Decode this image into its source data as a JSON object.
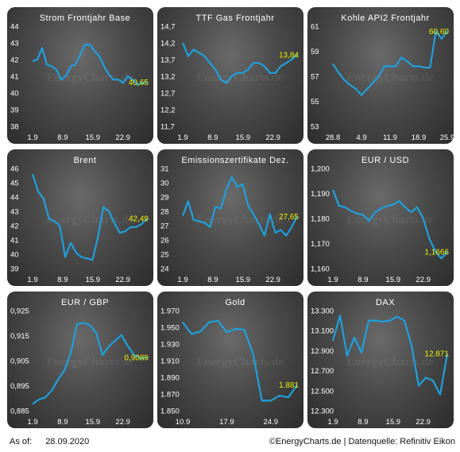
{
  "footer": {
    "as_of_label": "As of:",
    "as_of_date": "28.09.2020",
    "source": "©EnergyCharts.de | Datenquelle: Refinitiv Eikon"
  },
  "watermark": "EnergyCharts.de",
  "line_color": "#1ea0dc",
  "label_color": "#f0f000",
  "chart_data": [
    {
      "type": "line",
      "title": "Strom Frontjahr Base",
      "ylim": [
        38,
        44
      ],
      "yticks": [
        "38",
        "39",
        "40",
        "41",
        "42",
        "43",
        "44"
      ],
      "xticks": [
        {
          "label": "1.9",
          "x": 0
        },
        {
          "label": "8.9",
          "x": 5
        },
        {
          "label": "15.9",
          "x": 10
        },
        {
          "label": "22.9",
          "x": 15
        }
      ],
      "xmax": 19,
      "last_label": "40,65",
      "values": [
        41.9,
        42.0,
        42.7,
        41.7,
        41.6,
        41.4,
        40.8,
        41.0,
        41.6,
        41.7,
        42.3,
        42.9,
        42.9,
        42.5,
        42.2,
        41.6,
        41.1,
        40.8,
        40.8,
        40.6,
        41.0,
        40.8,
        40.5,
        40.6,
        40.65
      ]
    },
    {
      "type": "line",
      "title": "TTF Gas Frontjahr",
      "ylim": [
        11.7,
        14.7
      ],
      "yticks": [
        "11,7",
        "12,2",
        "12,7",
        "13,2",
        "13,7",
        "14,2",
        "14,7"
      ],
      "xticks": [
        {
          "label": "1.9",
          "x": 0
        },
        {
          "label": "8.9",
          "x": 5
        },
        {
          "label": "15.9",
          "x": 10
        },
        {
          "label": "22.9",
          "x": 15
        }
      ],
      "xmax": 19,
      "last_label": "13,84",
      "values": [
        14.2,
        13.8,
        14.0,
        13.9,
        13.8,
        13.6,
        13.4,
        13.1,
        13.0,
        13.2,
        13.3,
        13.3,
        13.4,
        13.6,
        13.6,
        13.5,
        13.3,
        13.3,
        13.5,
        13.6,
        13.7,
        13.84
      ]
    },
    {
      "type": "line",
      "title": "Kohle API2 Frontjahr",
      "ylim": [
        53,
        61
      ],
      "yticks": [
        "53",
        "55",
        "57",
        "59",
        "61"
      ],
      "xticks": [
        {
          "label": "28.8",
          "x": 0
        },
        {
          "label": "4.9",
          "x": 5
        },
        {
          "label": "11.9",
          "x": 10
        },
        {
          "label": "18.9",
          "x": 15
        },
        {
          "label": "25.9",
          "x": 20
        }
      ],
      "xmax": 20,
      "last_label": "60,60",
      "values": [
        58.0,
        57.3,
        56.7,
        56.3,
        56.0,
        55.5,
        56.0,
        56.5,
        57.0,
        57.8,
        57.8,
        57.8,
        58.5,
        58.2,
        57.8,
        57.8,
        57.7,
        57.7,
        60.6,
        60.0,
        60.6
      ]
    },
    {
      "type": "line",
      "title": "Brent",
      "ylim": [
        39,
        46
      ],
      "yticks": [
        "39",
        "40",
        "41",
        "42",
        "43",
        "44",
        "45",
        "46"
      ],
      "xticks": [
        {
          "label": "1.9",
          "x": 0
        },
        {
          "label": "8.9",
          "x": 5
        },
        {
          "label": "15.9",
          "x": 10
        },
        {
          "label": "22.9",
          "x": 15
        }
      ],
      "xmax": 19,
      "last_label": "42,49",
      "values": [
        45.6,
        44.4,
        43.9,
        42.5,
        42.3,
        42.0,
        39.8,
        40.8,
        40.1,
        39.8,
        39.7,
        39.6,
        41.2,
        43.3,
        43.0,
        42.2,
        41.5,
        41.6,
        41.9,
        41.9,
        42.1,
        42.49
      ]
    },
    {
      "type": "line",
      "title": "Emissionszertifikate Dez.",
      "ylim": [
        24,
        31
      ],
      "yticks": [
        "24",
        "25",
        "26",
        "27",
        "28",
        "29",
        "30",
        "31"
      ],
      "xticks": [
        {
          "label": "1.9",
          "x": 0
        },
        {
          "label": "8.9",
          "x": 5
        },
        {
          "label": "15.9",
          "x": 10
        },
        {
          "label": "22.9",
          "x": 15
        }
      ],
      "xmax": 19,
      "last_label": "27,65",
      "values": [
        27.7,
        28.7,
        27.4,
        27.3,
        27.2,
        26.9,
        28.3,
        28.2,
        29.5,
        30.4,
        29.7,
        29.9,
        28.4,
        27.8,
        27.1,
        26.3,
        27.8,
        26.5,
        26.7,
        26.3,
        26.9,
        27.65
      ]
    },
    {
      "type": "line",
      "title": "EUR / USD",
      "ylim": [
        1.16,
        1.2
      ],
      "yticks": [
        "1,160",
        "1,170",
        "1,180",
        "1,190",
        "1,200"
      ],
      "xticks": [
        {
          "label": "1.9",
          "x": 0
        },
        {
          "label": "8.9",
          "x": 5
        },
        {
          "label": "15.9",
          "x": 10
        },
        {
          "label": "22.9",
          "x": 15
        }
      ],
      "xmax": 19,
      "last_label": "1,1666",
      "values": [
        1.1915,
        1.185,
        1.1845,
        1.183,
        1.182,
        1.1815,
        1.179,
        1.1825,
        1.184,
        1.185,
        1.1855,
        1.187,
        1.1845,
        1.1825,
        1.1845,
        1.18,
        1.172,
        1.167,
        1.164,
        1.1666
      ]
    },
    {
      "type": "line",
      "title": "EUR / GBP",
      "ylim": [
        0.885,
        0.93
      ],
      "yticks": [
        "0,885",
        "0,895",
        "0,905",
        "0,915",
        "0,925"
      ],
      "xticks": [
        {
          "label": "1.9",
          "x": 0
        },
        {
          "label": "8.9",
          "x": 5
        },
        {
          "label": "15.9",
          "x": 10
        },
        {
          "label": "22.9",
          "x": 15
        }
      ],
      "xmax": 19,
      "last_label": "0,9089",
      "values": [
        0.888,
        0.89,
        0.891,
        0.894,
        0.899,
        0.903,
        0.911,
        0.924,
        0.9245,
        0.9235,
        0.92,
        0.91,
        0.914,
        0.9165,
        0.919,
        0.914,
        0.91,
        0.9085,
        0.9089
      ]
    },
    {
      "type": "line",
      "title": "Gold",
      "ylim": [
        1850,
        1970
      ],
      "yticks": [
        "1.850",
        "1.870",
        "1.890",
        "1.910",
        "1.930",
        "1.950",
        "1.970"
      ],
      "xticks": [
        {
          "label": "10.9",
          "x": 0
        },
        {
          "label": "17.9",
          "x": 5
        },
        {
          "label": "24.9",
          "x": 10
        }
      ],
      "xmax": 13,
      "last_label": "1.881",
      "values": [
        1956,
        1942,
        1945,
        1956,
        1958,
        1944,
        1948,
        1947,
        1918,
        1862,
        1862,
        1868,
        1866,
        1881
      ]
    },
    {
      "type": "line",
      "title": "DAX",
      "ylim": [
        12300,
        13300
      ],
      "yticks": [
        "12.300",
        "12.500",
        "12.700",
        "12.900",
        "13.100",
        "13.300"
      ],
      "xticks": [
        {
          "label": "1.9",
          "x": 0
        },
        {
          "label": "8.9",
          "x": 5
        },
        {
          "label": "15.9",
          "x": 10
        },
        {
          "label": "22.9",
          "x": 15
        }
      ],
      "xmax": 19,
      "last_label": "12.871",
      "values": [
        13000,
        13250,
        12850,
        13030,
        12880,
        13200,
        13200,
        13190,
        13200,
        13240,
        13200,
        12950,
        12550,
        12630,
        12600,
        12460,
        12870
      ]
    }
  ]
}
